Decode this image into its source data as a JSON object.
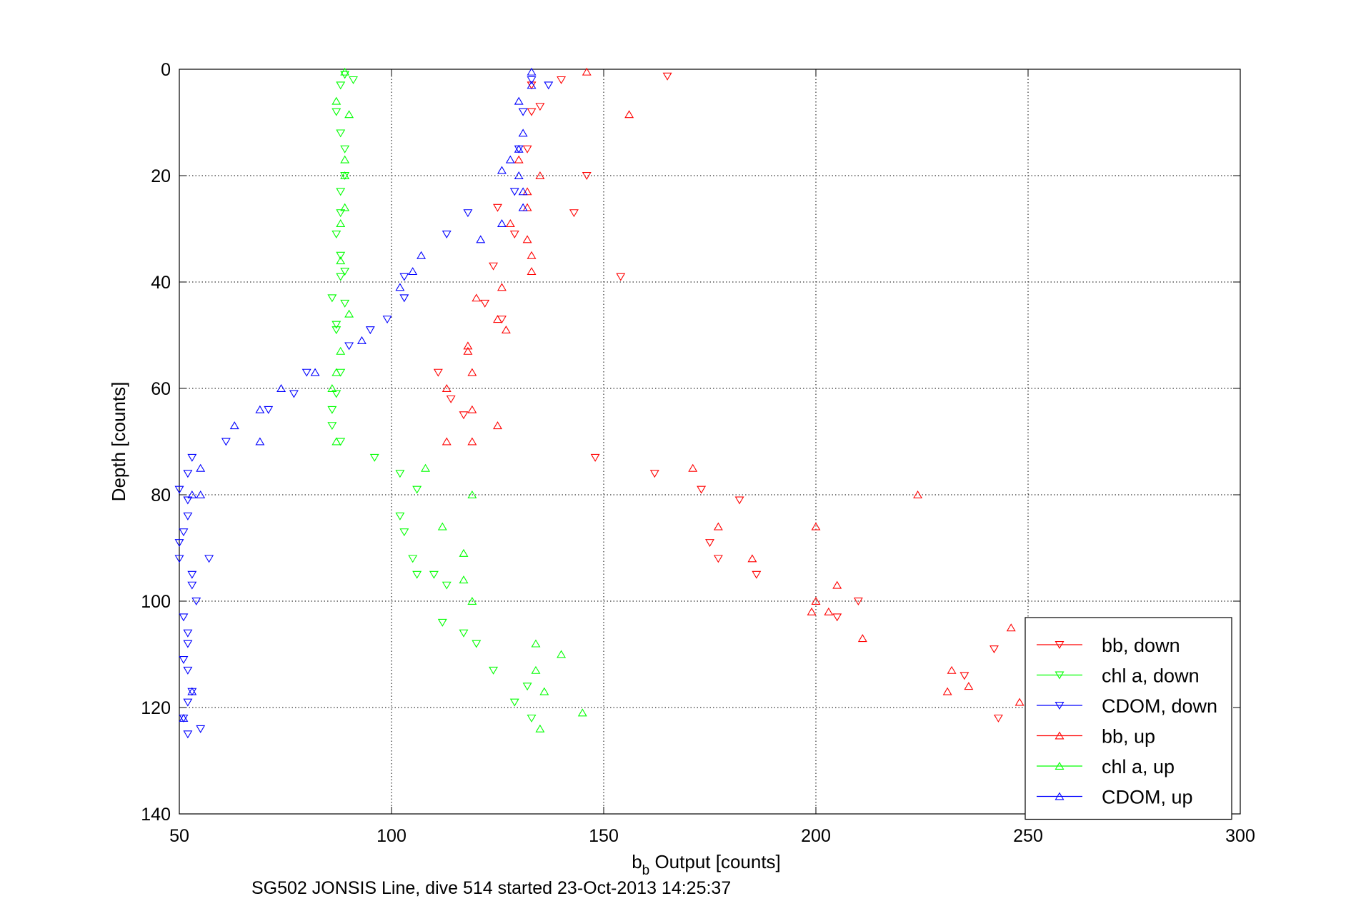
{
  "chart_data": {
    "type": "scatter",
    "title": "",
    "xlabel": {
      "base": "b",
      "sub": "b",
      "rest": " Output [counts]"
    },
    "ylabel": "Depth [counts]",
    "caption": "SG502 JONSIS Line, dive 514 started 23-Oct-2013 14:25:37",
    "xlim": [
      50,
      300
    ],
    "ylim": [
      0,
      140
    ],
    "y_reversed": true,
    "xticks": [
      50,
      100,
      150,
      200,
      250,
      300
    ],
    "yticks": [
      0,
      20,
      40,
      60,
      80,
      100,
      120,
      140
    ],
    "grid": true,
    "legend_position": "bottom-right",
    "series": [
      {
        "name": "bb, down",
        "color": "#ff0000",
        "marker": "triangle-down",
        "points": [
          [
            165,
            1.3
          ],
          [
            140,
            2
          ],
          [
            133,
            3
          ],
          [
            135,
            7
          ],
          [
            133,
            8
          ],
          [
            132,
            15
          ],
          [
            146,
            20
          ],
          [
            125,
            26
          ],
          [
            143,
            27
          ],
          [
            129,
            31
          ],
          [
            124,
            37
          ],
          [
            154,
            39
          ],
          [
            122,
            44
          ],
          [
            126,
            47
          ],
          [
            111,
            57
          ],
          [
            114,
            62
          ],
          [
            117,
            65
          ],
          [
            148,
            73
          ],
          [
            162,
            76
          ],
          [
            173,
            79
          ],
          [
            182,
            81
          ],
          [
            175,
            89
          ],
          [
            177,
            92
          ],
          [
            186,
            95
          ],
          [
            210,
            100
          ],
          [
            205,
            103
          ],
          [
            242,
            109
          ],
          [
            235,
            114
          ],
          [
            243,
            122
          ]
        ]
      },
      {
        "name": "chl a, down",
        "color": "#00ff00",
        "marker": "triangle-down",
        "points": [
          [
            89,
            1
          ],
          [
            91,
            2
          ],
          [
            88,
            3
          ],
          [
            87,
            8
          ],
          [
            88,
            12
          ],
          [
            89,
            15
          ],
          [
            89,
            20
          ],
          [
            88,
            23
          ],
          [
            88,
            27
          ],
          [
            87,
            31
          ],
          [
            88,
            35
          ],
          [
            89,
            38
          ],
          [
            88,
            39
          ],
          [
            86,
            43
          ],
          [
            89,
            44
          ],
          [
            87,
            48
          ],
          [
            87,
            49
          ],
          [
            88,
            57
          ],
          [
            87,
            61
          ],
          [
            86,
            64
          ],
          [
            86,
            67
          ],
          [
            88,
            70
          ],
          [
            96,
            73
          ],
          [
            102,
            76
          ],
          [
            106,
            79
          ],
          [
            102,
            84
          ],
          [
            103,
            87
          ],
          [
            105,
            92
          ],
          [
            106,
            95
          ],
          [
            110,
            95
          ],
          [
            113,
            97
          ],
          [
            112,
            104
          ],
          [
            117,
            106
          ],
          [
            120,
            108
          ],
          [
            124,
            113
          ],
          [
            132,
            116
          ],
          [
            129,
            119
          ],
          [
            133,
            122
          ]
        ]
      },
      {
        "name": "CDOM, down",
        "color": "#0000ff",
        "marker": "triangle-down",
        "points": [
          [
            133,
            2
          ],
          [
            137,
            3
          ],
          [
            131,
            8
          ],
          [
            130,
            15
          ],
          [
            129,
            23
          ],
          [
            118,
            27
          ],
          [
            113,
            31
          ],
          [
            103,
            39
          ],
          [
            103,
            43
          ],
          [
            99,
            47
          ],
          [
            95,
            49
          ],
          [
            90,
            52
          ],
          [
            80,
            57
          ],
          [
            77,
            61
          ],
          [
            71,
            64
          ],
          [
            61,
            70
          ],
          [
            53,
            73
          ],
          [
            52,
            76
          ],
          [
            50,
            79
          ],
          [
            52,
            81
          ],
          [
            52,
            84
          ],
          [
            51,
            87
          ],
          [
            50,
            89
          ],
          [
            50,
            92
          ],
          [
            57,
            92
          ],
          [
            53,
            95
          ],
          [
            53,
            97
          ],
          [
            54,
            100
          ],
          [
            51,
            103
          ],
          [
            52,
            106
          ],
          [
            52,
            108
          ],
          [
            51,
            111
          ],
          [
            52,
            113
          ],
          [
            53,
            117
          ],
          [
            52,
            119
          ],
          [
            51,
            122
          ],
          [
            55,
            124
          ],
          [
            52,
            125
          ]
        ]
      },
      {
        "name": "bb, up",
        "color": "#ff0000",
        "marker": "triangle-up",
        "points": [
          [
            146,
            0.5
          ],
          [
            156,
            8.5
          ],
          [
            135,
            20
          ],
          [
            130,
            17
          ],
          [
            132,
            23
          ],
          [
            132,
            26
          ],
          [
            128,
            29
          ],
          [
            132,
            32
          ],
          [
            133,
            35
          ],
          [
            133,
            38
          ],
          [
            126,
            41
          ],
          [
            120,
            43
          ],
          [
            125,
            47
          ],
          [
            127,
            49
          ],
          [
            118,
            52
          ],
          [
            118,
            53
          ],
          [
            119,
            57
          ],
          [
            113,
            60
          ],
          [
            119,
            64
          ],
          [
            125,
            67
          ],
          [
            113,
            70
          ],
          [
            119,
            70
          ],
          [
            171,
            75
          ],
          [
            177,
            86
          ],
          [
            200,
            86
          ],
          [
            224,
            80
          ],
          [
            185,
            92
          ],
          [
            205,
            97
          ],
          [
            200,
            100
          ],
          [
            199,
            102
          ],
          [
            203,
            102
          ],
          [
            246,
            105
          ],
          [
            211,
            107
          ],
          [
            232,
            113
          ],
          [
            231,
            117
          ],
          [
            236,
            116
          ],
          [
            248,
            119
          ]
        ]
      },
      {
        "name": "chl a, up",
        "color": "#00ff00",
        "marker": "triangle-up",
        "points": [
          [
            89,
            0.5
          ],
          [
            87,
            6
          ],
          [
            90,
            8.5
          ],
          [
            89,
            17
          ],
          [
            89,
            20
          ],
          [
            89,
            26
          ],
          [
            88,
            29
          ],
          [
            88,
            36
          ],
          [
            90,
            46
          ],
          [
            88,
            53
          ],
          [
            87,
            57
          ],
          [
            86,
            60
          ],
          [
            87,
            70
          ],
          [
            108,
            75
          ],
          [
            112,
            86
          ],
          [
            119,
            80
          ],
          [
            117,
            91
          ],
          [
            117,
            96
          ],
          [
            119,
            100
          ],
          [
            134,
            108
          ],
          [
            140,
            110
          ],
          [
            134,
            113
          ],
          [
            136,
            117
          ],
          [
            145,
            121
          ],
          [
            135,
            124
          ]
        ]
      },
      {
        "name": "CDOM, up",
        "color": "#0000ff",
        "marker": "triangle-up",
        "points": [
          [
            133,
            0.5
          ],
          [
            133,
            3
          ],
          [
            130,
            6
          ],
          [
            131,
            12
          ],
          [
            130,
            15
          ],
          [
            128,
            17
          ],
          [
            126,
            19
          ],
          [
            130,
            20
          ],
          [
            131,
            23
          ],
          [
            131,
            26
          ],
          [
            126,
            29
          ],
          [
            121,
            32
          ],
          [
            107,
            35
          ],
          [
            105,
            38
          ],
          [
            102,
            41
          ],
          [
            93,
            51
          ],
          [
            82,
            57
          ],
          [
            74,
            60
          ],
          [
            69,
            64
          ],
          [
            63,
            67
          ],
          [
            69,
            70
          ],
          [
            55,
            75
          ],
          [
            53,
            80
          ],
          [
            55,
            80
          ],
          [
            53,
            117
          ],
          [
            51,
            122
          ]
        ]
      }
    ]
  }
}
